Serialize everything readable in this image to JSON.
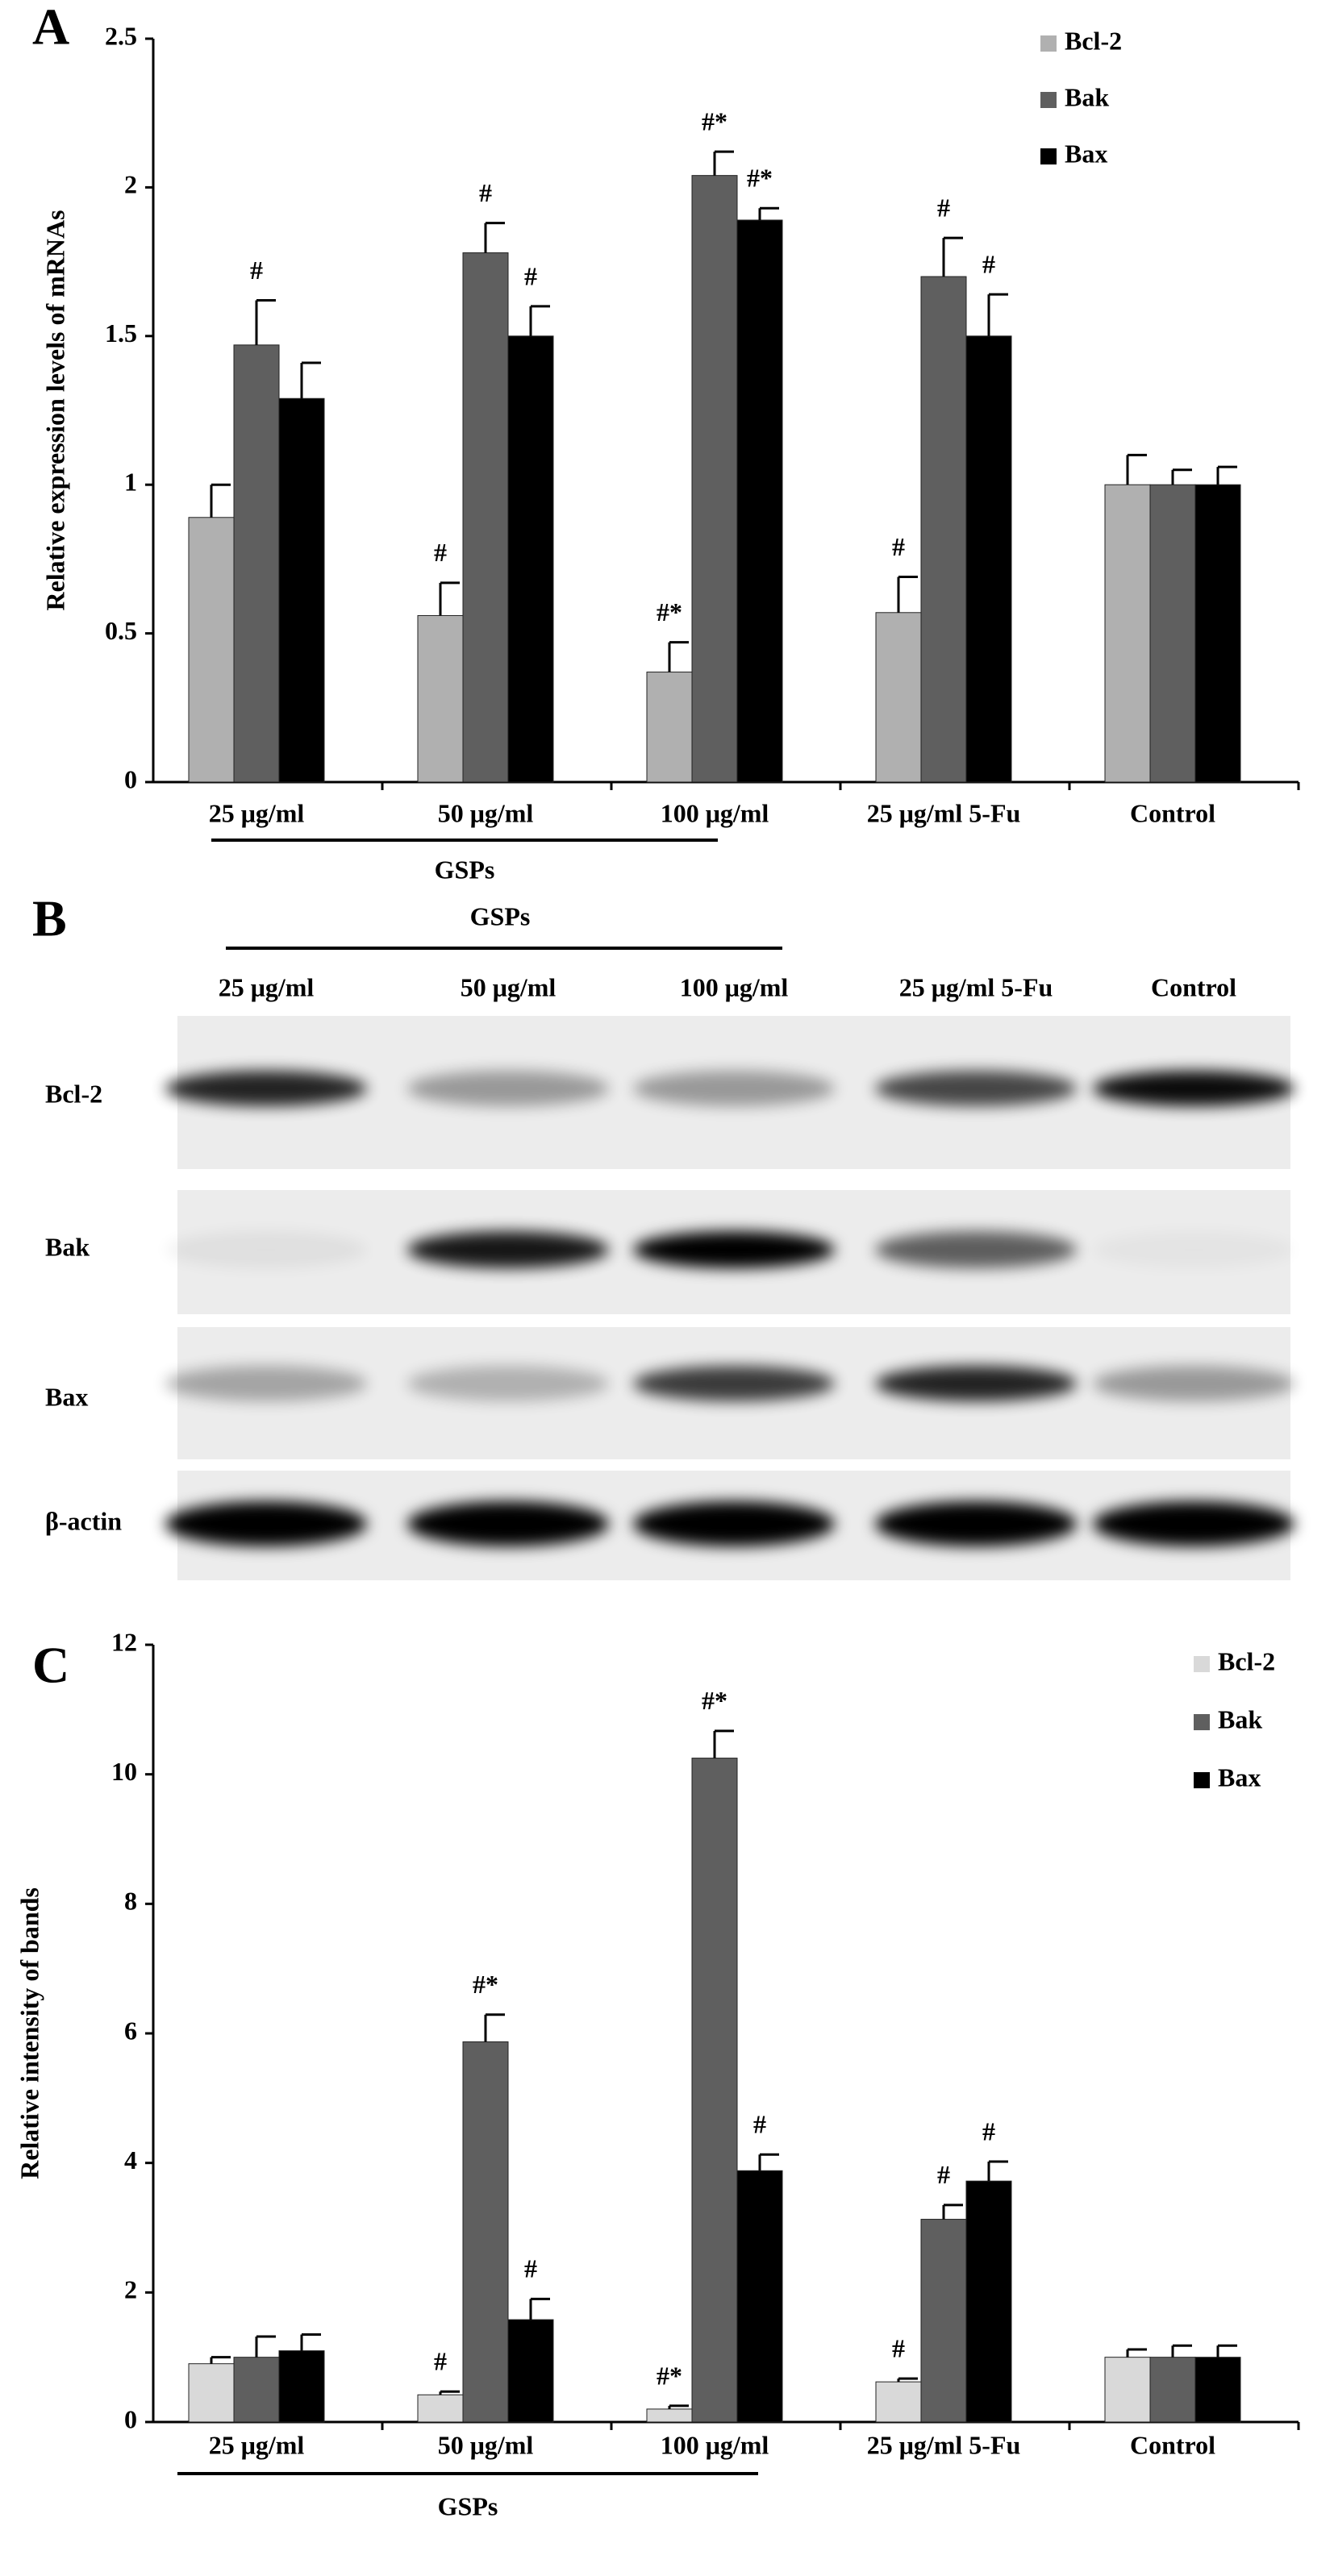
{
  "chart_data": [
    {
      "type": "bar",
      "panel": "A",
      "y_label": "Relative expression levels of mRNAs",
      "categories": [
        "25 μg/ml",
        "50 μg/ml",
        "100 μg/ml",
        "25 μg/ml 5-Fu",
        "Control"
      ],
      "group_label": "GSPs",
      "series": [
        {
          "name": "Bcl-2",
          "color": "#b0b0b0",
          "values": [
            0.89,
            0.56,
            0.37,
            0.57,
            1.0
          ],
          "errors": [
            0.11,
            0.11,
            0.1,
            0.12,
            0.1
          ],
          "annotations": [
            null,
            "#",
            "#*",
            "#",
            null
          ]
        },
        {
          "name": "Bak",
          "color": "#5f5f5f",
          "values": [
            1.47,
            1.78,
            2.04,
            1.7,
            1.0
          ],
          "errors": [
            0.15,
            0.1,
            0.08,
            0.13,
            0.05
          ],
          "annotations": [
            "#",
            "#",
            "#*",
            "#",
            null
          ]
        },
        {
          "name": "Bax",
          "color": "#000000",
          "values": [
            1.29,
            1.5,
            1.89,
            1.5,
            1.0
          ],
          "errors": [
            0.12,
            0.1,
            0.04,
            0.14,
            0.06
          ],
          "annotations": [
            null,
            "#",
            "#*",
            "#",
            null
          ]
        }
      ],
      "ylim": [
        0,
        2.5
      ],
      "yticks": [
        0,
        0.5,
        1,
        1.5,
        2,
        2.5
      ],
      "legend": "top-right"
    },
    {
      "type": "bar",
      "panel": "C",
      "y_label": "Relative intensity of bands",
      "categories": [
        "25 μg/ml",
        "50 μg/ml",
        "100 μg/ml",
        "25 μg/ml 5-Fu",
        "Control"
      ],
      "group_label": "GSPs",
      "series": [
        {
          "name": "Bcl-2",
          "color": "#d9d9d9",
          "values": [
            0.9,
            0.42,
            0.2,
            0.62,
            1.0
          ],
          "errors": [
            0.1,
            0.05,
            0.05,
            0.05,
            0.12
          ],
          "annotations": [
            null,
            "#",
            "#*",
            "#",
            null
          ]
        },
        {
          "name": "Bak",
          "color": "#5f5f5f",
          "values": [
            1.0,
            5.87,
            10.25,
            3.13,
            1.0
          ],
          "errors": [
            0.32,
            0.42,
            0.42,
            0.22,
            0.18
          ],
          "annotations": [
            null,
            "#*",
            "#*",
            "#",
            null
          ]
        },
        {
          "name": "Bax",
          "color": "#000000",
          "values": [
            1.1,
            1.58,
            3.88,
            3.72,
            1.0
          ],
          "errors": [
            0.25,
            0.32,
            0.25,
            0.3,
            0.18
          ],
          "annotations": [
            null,
            "#",
            "#",
            "#",
            null
          ]
        }
      ],
      "ylim": [
        0,
        12
      ],
      "yticks": [
        0,
        2,
        4,
        6,
        8,
        10,
        12
      ],
      "legend": "top-right"
    }
  ],
  "blot": {
    "panel": "B",
    "group_label": "GSPs",
    "columns": [
      "25 μg/ml",
      "50 μg/ml",
      "100 μg/ml",
      "25 μg/ml 5-Fu",
      "Control"
    ],
    "rows": [
      "Bcl-2",
      "Bak",
      "Bax",
      "β-actin"
    ]
  }
}
